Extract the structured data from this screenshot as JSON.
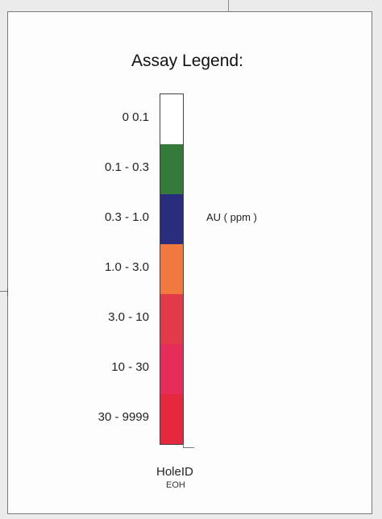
{
  "legend": {
    "title": "Assay Legend:",
    "unit_label": "AU ( ppm )",
    "hole_label": "HoleID",
    "end_label": "EOH",
    "ranges": [
      {
        "label": "0   0.1",
        "color": "#ffffff"
      },
      {
        "label": "0.1 - 0.3",
        "color": "#347a3a"
      },
      {
        "label": "0.3 - 1.0",
        "color": "#2a2c7e"
      },
      {
        "label": "1.0 - 3.0",
        "color": "#f2793e"
      },
      {
        "label": "3.0 - 10",
        "color": "#e23a48"
      },
      {
        "label": "10 - 30",
        "color": "#e62c58"
      },
      {
        "label": "30 - 9999",
        "color": "#e5283e"
      }
    ]
  }
}
